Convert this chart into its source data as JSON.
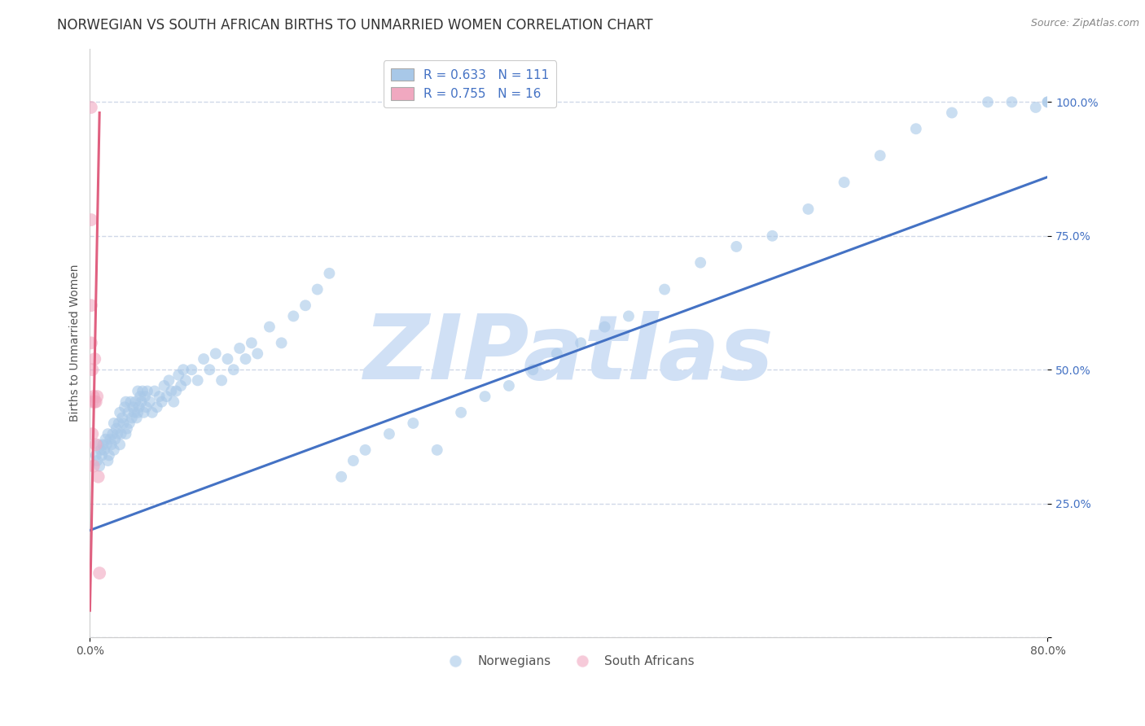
{
  "title": "NORWEGIAN VS SOUTH AFRICAN BIRTHS TO UNMARRIED WOMEN CORRELATION CHART",
  "source": "Source: ZipAtlas.com",
  "ylabel": "Births to Unmarried Women",
  "xlim": [
    0.0,
    0.8
  ],
  "ylim": [
    0.0,
    1.1
  ],
  "xticks": [
    0.0,
    0.8
  ],
  "xticklabels": [
    "0.0%",
    "80.0%"
  ],
  "yticks": [
    0.0,
    0.25,
    0.5,
    0.75,
    1.0
  ],
  "yticklabels": [
    "",
    "25.0%",
    "50.0%",
    "75.0%",
    "100.0%"
  ],
  "norwegian_R": 0.633,
  "norwegian_N": 111,
  "southafrican_R": 0.755,
  "southafrican_N": 16,
  "blue_color": "#a8c8e8",
  "pink_color": "#f0a8c0",
  "blue_line_color": "#4472c4",
  "pink_line_color": "#e06080",
  "yaxis_tick_color": "#4472c4",
  "watermark": "ZIPatlas",
  "watermark_color": "#d0e0f5",
  "legend_blue_label": "Norwegians",
  "legend_pink_label": "South Africans",
  "background_color": "#ffffff",
  "grid_color": "#d0d8e8",
  "title_fontsize": 12,
  "axis_label_fontsize": 10,
  "tick_fontsize": 10,
  "legend_fontsize": 11,
  "dot_size_blue": 100,
  "dot_size_pink": 130,
  "dot_alpha": 0.6,
  "norwegian_x": [
    0.005,
    0.006,
    0.007,
    0.008,
    0.009,
    0.01,
    0.011,
    0.012,
    0.013,
    0.014,
    0.015,
    0.015,
    0.016,
    0.017,
    0.018,
    0.019,
    0.02,
    0.02,
    0.021,
    0.022,
    0.023,
    0.024,
    0.025,
    0.025,
    0.026,
    0.027,
    0.028,
    0.029,
    0.03,
    0.03,
    0.031,
    0.032,
    0.033,
    0.034,
    0.035,
    0.036,
    0.037,
    0.038,
    0.039,
    0.04,
    0.04,
    0.041,
    0.042,
    0.043,
    0.044,
    0.045,
    0.046,
    0.047,
    0.048,
    0.05,
    0.052,
    0.054,
    0.056,
    0.058,
    0.06,
    0.062,
    0.064,
    0.066,
    0.068,
    0.07,
    0.072,
    0.074,
    0.076,
    0.078,
    0.08,
    0.085,
    0.09,
    0.095,
    0.1,
    0.105,
    0.11,
    0.115,
    0.12,
    0.125,
    0.13,
    0.135,
    0.14,
    0.15,
    0.16,
    0.17,
    0.18,
    0.19,
    0.2,
    0.21,
    0.22,
    0.23,
    0.25,
    0.27,
    0.29,
    0.31,
    0.33,
    0.35,
    0.37,
    0.39,
    0.41,
    0.43,
    0.45,
    0.48,
    0.51,
    0.54,
    0.57,
    0.6,
    0.63,
    0.66,
    0.69,
    0.72,
    0.75,
    0.77,
    0.79,
    0.8,
    0.8
  ],
  "norwegian_y": [
    0.34,
    0.33,
    0.36,
    0.32,
    0.35,
    0.34,
    0.36,
    0.35,
    0.37,
    0.36,
    0.33,
    0.38,
    0.34,
    0.37,
    0.36,
    0.38,
    0.35,
    0.4,
    0.37,
    0.39,
    0.38,
    0.4,
    0.36,
    0.42,
    0.38,
    0.41,
    0.4,
    0.43,
    0.38,
    0.44,
    0.39,
    0.42,
    0.4,
    0.44,
    0.41,
    0.43,
    0.42,
    0.44,
    0.41,
    0.42,
    0.46,
    0.43,
    0.45,
    0.44,
    0.46,
    0.42,
    0.45,
    0.43,
    0.46,
    0.44,
    0.42,
    0.46,
    0.43,
    0.45,
    0.44,
    0.47,
    0.45,
    0.48,
    0.46,
    0.44,
    0.46,
    0.49,
    0.47,
    0.5,
    0.48,
    0.5,
    0.48,
    0.52,
    0.5,
    0.53,
    0.48,
    0.52,
    0.5,
    0.54,
    0.52,
    0.55,
    0.53,
    0.58,
    0.55,
    0.6,
    0.62,
    0.65,
    0.68,
    0.3,
    0.33,
    0.35,
    0.38,
    0.4,
    0.35,
    0.42,
    0.45,
    0.47,
    0.5,
    0.53,
    0.55,
    0.58,
    0.6,
    0.65,
    0.7,
    0.73,
    0.75,
    0.8,
    0.85,
    0.9,
    0.95,
    0.98,
    1.0,
    1.0,
    0.99,
    1.0,
    1.0
  ],
  "southafrican_x": [
    0.001,
    0.001,
    0.001,
    0.001,
    0.002,
    0.002,
    0.002,
    0.003,
    0.003,
    0.004,
    0.004,
    0.005,
    0.005,
    0.006,
    0.007,
    0.008
  ],
  "southafrican_y": [
    0.99,
    0.78,
    0.62,
    0.55,
    0.5,
    0.44,
    0.38,
    0.45,
    0.32,
    0.44,
    0.52,
    0.44,
    0.36,
    0.45,
    0.3,
    0.12
  ],
  "blue_trendline_x": [
    0.0,
    0.8
  ],
  "blue_trendline_y": [
    0.2,
    0.86
  ],
  "pink_trendline_x": [
    0.0,
    0.008
  ],
  "pink_trendline_y": [
    0.05,
    0.98
  ]
}
